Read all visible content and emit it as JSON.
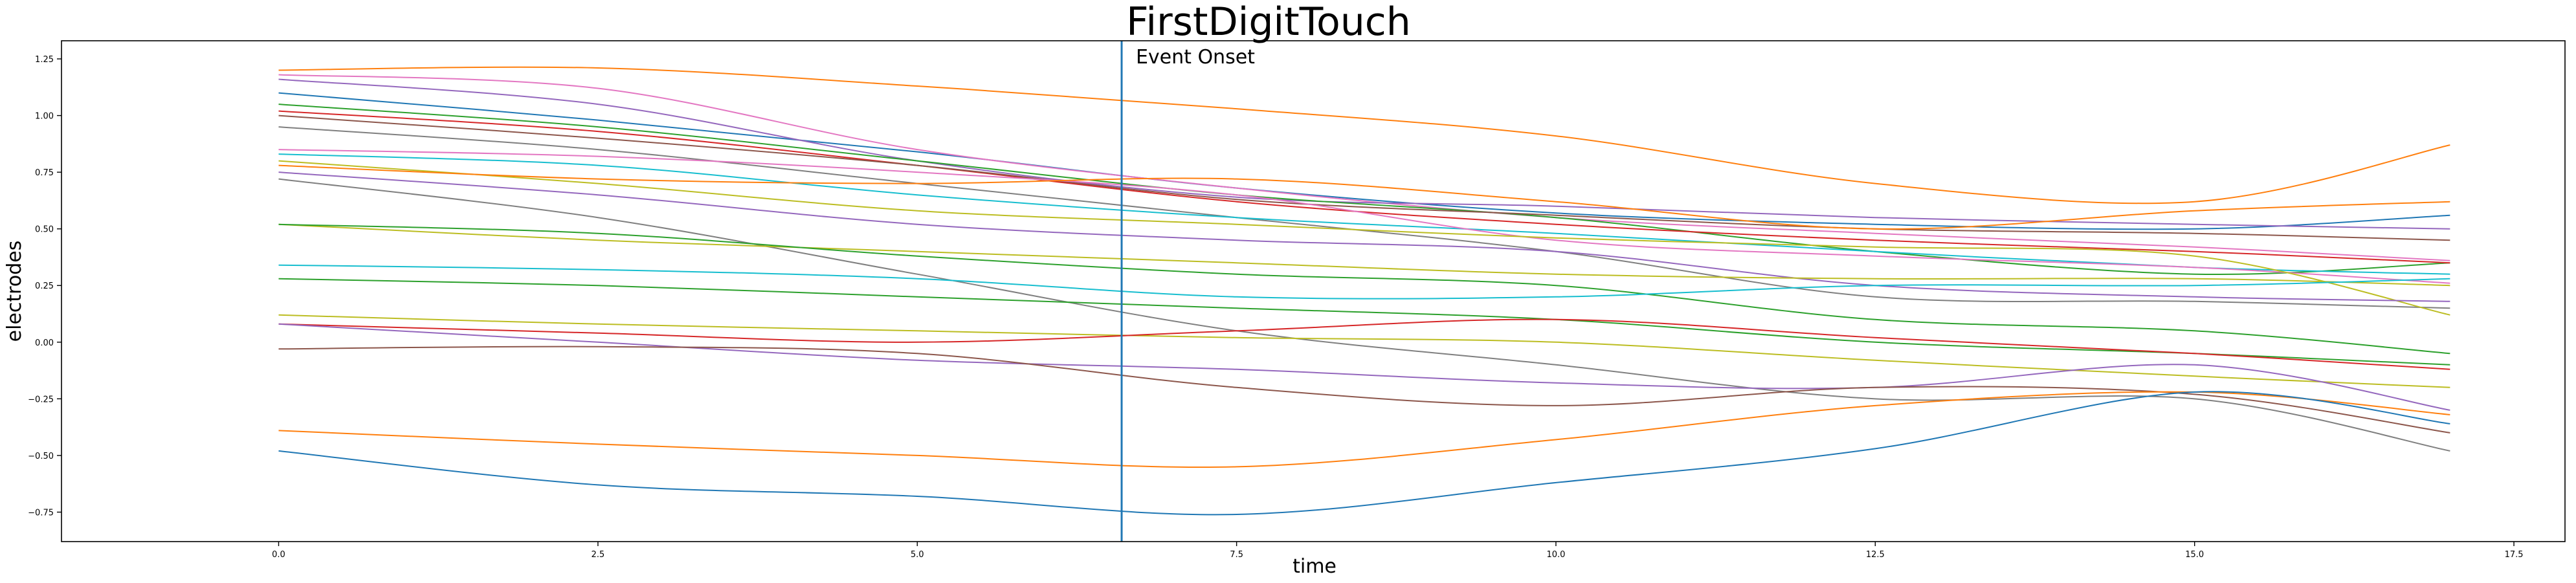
{
  "chart_data": {
    "type": "line",
    "title": "FirstDigitTouch",
    "xlabel": "time",
    "ylabel": "electrodes",
    "xlim": [
      -1.7,
      17.9
    ],
    "ylim": [
      -0.88,
      1.33
    ],
    "xticks": [
      0.0,
      2.5,
      5.0,
      7.5,
      10.0,
      12.5,
      15.0,
      17.5
    ],
    "xtick_labels": [
      "0.0",
      "2.5",
      "5.0",
      "7.5",
      "10.0",
      "12.5",
      "15.0",
      "17.5"
    ],
    "yticks": [
      1.25,
      1.0,
      0.75,
      0.5,
      0.25,
      0.0,
      -0.25,
      -0.5,
      -0.75
    ],
    "ytick_labels": [
      "1.25",
      "1.00",
      "0.75",
      "0.50",
      "0.25",
      "0.00",
      "−0.25",
      "−0.50",
      "−0.75"
    ],
    "grid": false,
    "event_onset": {
      "x": 6.6,
      "color": "#1f77b4",
      "label": "Event Onset"
    },
    "x": [
      0,
      2.5,
      5,
      7.5,
      10,
      12.5,
      15,
      17
    ],
    "series": [
      {
        "color": "#ff7f0e",
        "values": [
          1.2,
          1.21,
          1.13,
          1.03,
          0.91,
          0.7,
          0.62,
          0.87
        ]
      },
      {
        "color": "#1f77b4",
        "values": [
          1.1,
          0.98,
          0.84,
          0.68,
          0.57,
          0.52,
          0.5,
          0.56
        ]
      },
      {
        "color": "#e377c2",
        "values": [
          1.18,
          1.12,
          0.85,
          0.68,
          0.55,
          0.48,
          0.42,
          0.36
        ]
      },
      {
        "color": "#9467bd",
        "values": [
          1.16,
          1.05,
          0.8,
          0.64,
          0.6,
          0.55,
          0.52,
          0.5
        ]
      },
      {
        "color": "#2ca02c",
        "values": [
          1.05,
          0.95,
          0.8,
          0.65,
          0.55,
          0.4,
          0.3,
          0.35
        ]
      },
      {
        "color": "#d62728",
        "values": [
          1.02,
          0.93,
          0.78,
          0.62,
          0.52,
          0.45,
          0.4,
          0.35
        ]
      },
      {
        "color": "#8c564b",
        "values": [
          1.0,
          0.9,
          0.78,
          0.63,
          0.56,
          0.5,
          0.48,
          0.45
        ]
      },
      {
        "color": "#7f7f7f",
        "values": [
          0.95,
          0.85,
          0.7,
          0.55,
          0.4,
          0.2,
          0.18,
          0.15
        ]
      },
      {
        "color": "#17becf",
        "values": [
          0.83,
          0.78,
          0.65,
          0.55,
          0.48,
          0.4,
          0.33,
          0.3
        ]
      },
      {
        "color": "#e377c2",
        "values": [
          0.85,
          0.82,
          0.75,
          0.65,
          0.45,
          0.38,
          0.33,
          0.26
        ]
      },
      {
        "color": "#bcbd22",
        "values": [
          0.8,
          0.7,
          0.58,
          0.52,
          0.46,
          0.42,
          0.38,
          0.12
        ]
      },
      {
        "color": "#ff7f0e",
        "values": [
          0.78,
          0.72,
          0.7,
          0.72,
          0.62,
          0.5,
          0.58,
          0.62
        ]
      },
      {
        "color": "#9467bd",
        "values": [
          0.75,
          0.65,
          0.52,
          0.45,
          0.4,
          0.25,
          0.2,
          0.18
        ]
      },
      {
        "color": "#7f7f7f",
        "values": [
          0.72,
          0.55,
          0.3,
          0.05,
          -0.1,
          -0.25,
          -0.25,
          -0.48
        ]
      },
      {
        "color": "#bcbd22",
        "values": [
          0.52,
          0.45,
          0.4,
          0.35,
          0.3,
          0.28,
          0.28,
          0.25
        ]
      },
      {
        "color": "#2ca02c",
        "values": [
          0.52,
          0.48,
          0.38,
          0.3,
          0.25,
          0.1,
          0.05,
          -0.05
        ]
      },
      {
        "color": "#17becf",
        "values": [
          0.34,
          0.32,
          0.28,
          0.2,
          0.2,
          0.25,
          0.25,
          0.28
        ]
      },
      {
        "color": "#2ca02c",
        "values": [
          0.28,
          0.25,
          0.2,
          0.15,
          0.1,
          0.0,
          -0.05,
          -0.1
        ]
      },
      {
        "color": "#bcbd22",
        "values": [
          0.12,
          0.08,
          0.05,
          0.02,
          0.0,
          -0.08,
          -0.15,
          -0.2
        ]
      },
      {
        "color": "#d62728",
        "values": [
          0.08,
          0.04,
          0.0,
          0.05,
          0.1,
          0.02,
          -0.05,
          -0.12
        ]
      },
      {
        "color": "#9467bd",
        "values": [
          0.08,
          0.0,
          -0.08,
          -0.12,
          -0.18,
          -0.2,
          -0.1,
          -0.3
        ]
      },
      {
        "color": "#8c564b",
        "values": [
          -0.03,
          -0.02,
          -0.05,
          -0.2,
          -0.28,
          -0.2,
          -0.23,
          -0.4
        ]
      },
      {
        "color": "#ff7f0e",
        "values": [
          -0.39,
          -0.45,
          -0.5,
          -0.55,
          -0.43,
          -0.28,
          -0.22,
          -0.32
        ]
      },
      {
        "color": "#1f77b4",
        "values": [
          -0.48,
          -0.63,
          -0.68,
          -0.76,
          -0.62,
          -0.47,
          -0.22,
          -0.36
        ]
      }
    ]
  }
}
